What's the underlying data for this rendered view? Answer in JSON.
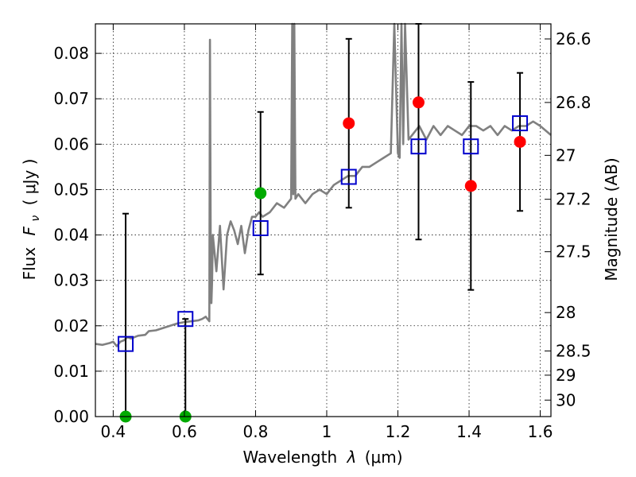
{
  "chart_data": {
    "type": "scatter",
    "xlabel_prefix": "Wavelength",
    "xlabel_sym": "λ",
    "xlabel_unit": "(μm)",
    "ylabel_prefix": "Flux",
    "ylabel_sym": "F",
    "ylabel_sub": "ν",
    "ylabel_unit": "( μJy )",
    "y2label": "Magnitude (AB)",
    "xlim": [
      0.35,
      1.63
    ],
    "ylim": [
      0.0,
      0.0865
    ],
    "x_ticks": [
      0.4,
      0.6,
      0.8,
      1.0,
      1.2,
      1.4,
      1.6
    ],
    "x_tick_labels": [
      "0.4",
      "0.6",
      "0.8",
      "1",
      "1.2",
      "1.4",
      "1.6"
    ],
    "y_ticks": [
      0.0,
      0.01,
      0.02,
      0.03,
      0.04,
      0.05,
      0.06,
      0.07,
      0.08
    ],
    "y_tick_labels": [
      "0.00",
      "0.01",
      "0.02",
      "0.03",
      "0.04",
      "0.05",
      "0.06",
      "0.07",
      "0.08"
    ],
    "y2_tick_labels": [
      "26.6",
      "26.8",
      "27",
      "27.2",
      "27.5",
      "28",
      "28.5",
      "29",
      "30"
    ],
    "grid": true,
    "colors": {
      "model": "#808080",
      "model_flux": "#0000cc",
      "observed": "#ff0000",
      "upper": "#00aa00",
      "errorbar": "#000000"
    },
    "model_spectrum": {
      "x": [
        0.35,
        0.37,
        0.39,
        0.4,
        0.41,
        0.42,
        0.43,
        0.44,
        0.45,
        0.47,
        0.49,
        0.5,
        0.52,
        0.54,
        0.56,
        0.58,
        0.6,
        0.62,
        0.64,
        0.65,
        0.66,
        0.67,
        0.672,
        0.674,
        0.676,
        0.678,
        0.68,
        0.69,
        0.7,
        0.71,
        0.72,
        0.73,
        0.74,
        0.75,
        0.76,
        0.77,
        0.78,
        0.79,
        0.8,
        0.81,
        0.82,
        0.84,
        0.86,
        0.88,
        0.9,
        0.903,
        0.906,
        0.909,
        0.912,
        0.92,
        0.94,
        0.96,
        0.98,
        1.0,
        1.02,
        1.04,
        1.06,
        1.08,
        1.1,
        1.12,
        1.14,
        1.16,
        1.18,
        1.19,
        1.2,
        1.205,
        1.21,
        1.215,
        1.22,
        1.23,
        1.24,
        1.26,
        1.28,
        1.3,
        1.32,
        1.34,
        1.36,
        1.38,
        1.4,
        1.42,
        1.44,
        1.46,
        1.48,
        1.5,
        1.52,
        1.54,
        1.56,
        1.58,
        1.6,
        1.63
      ],
      "y": [
        0.016,
        0.0158,
        0.0162,
        0.0165,
        0.0155,
        0.0165,
        0.0168,
        0.0175,
        0.0172,
        0.0178,
        0.018,
        0.0188,
        0.019,
        0.0195,
        0.02,
        0.0205,
        0.0208,
        0.021,
        0.0212,
        0.0215,
        0.022,
        0.021,
        0.083,
        0.04,
        0.025,
        0.03,
        0.04,
        0.032,
        0.042,
        0.028,
        0.04,
        0.043,
        0.041,
        0.038,
        0.042,
        0.036,
        0.041,
        0.044,
        0.044,
        0.045,
        0.044,
        0.045,
        0.047,
        0.046,
        0.048,
        0.092,
        0.049,
        0.092,
        0.048,
        0.049,
        0.047,
        0.049,
        0.05,
        0.049,
        0.051,
        0.052,
        0.053,
        0.053,
        0.055,
        0.055,
        0.056,
        0.057,
        0.058,
        0.1,
        0.058,
        0.057,
        0.1,
        0.06,
        0.1,
        0.061,
        0.062,
        0.064,
        0.061,
        0.064,
        0.062,
        0.064,
        0.063,
        0.062,
        0.064,
        0.064,
        0.063,
        0.064,
        0.062,
        0.064,
        0.063,
        0.064,
        0.064,
        0.065,
        0.064,
        0.062
      ]
    },
    "model_points": {
      "x": [
        0.435,
        0.603,
        0.814,
        1.062,
        1.258,
        1.405,
        1.543
      ],
      "y": [
        0.016,
        0.0215,
        0.0415,
        0.0528,
        0.0595,
        0.0595,
        0.0646
      ]
    },
    "observed": {
      "x": [
        1.062,
        1.258,
        1.405,
        1.543
      ],
      "y": [
        0.0646,
        0.0692,
        0.0508,
        0.0605
      ],
      "yerr": [
        0.0186,
        0.0302,
        0.0229,
        0.0152
      ]
    },
    "upper_limits": {
      "x": [
        0.435,
        0.603,
        0.814
      ],
      "y": [
        0.0,
        0.0,
        0.0492
      ],
      "yerr": [
        0.0447,
        0.0215,
        0.0179
      ]
    }
  }
}
